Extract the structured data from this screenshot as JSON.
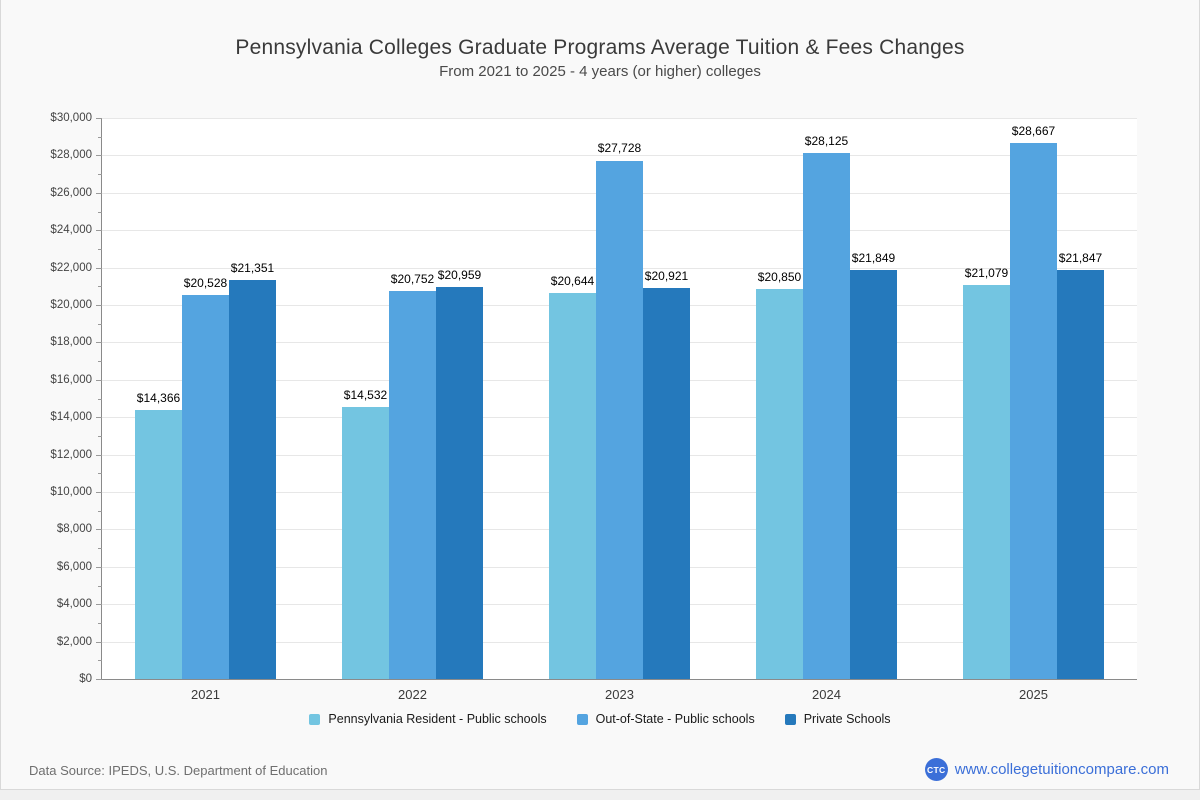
{
  "page": {
    "background": "#f0f0f0",
    "card_background": "#f9f9f9",
    "border_color": "#d9d9d9"
  },
  "header": {
    "title": "Pennsylvania Colleges Graduate Programs Average Tuition & Fees Changes",
    "subtitle": "From 2021 to 2025 - 4 years (or higher) colleges"
  },
  "chart_data": {
    "type": "bar",
    "title": "Pennsylvania Colleges Graduate Programs Average Tuition & Fees Changes",
    "subtitle": "From 2021 to 2025 - 4 years (or higher) colleges",
    "categories": [
      "2021",
      "2022",
      "2023",
      "2024",
      "2025"
    ],
    "series": [
      {
        "name": "Pennsylvania Resident - Public schools",
        "color": "#73c5e1",
        "values": [
          14366,
          14532,
          20644,
          20850,
          21079
        ]
      },
      {
        "name": "Out-of-State - Public schools",
        "color": "#54a4e0",
        "values": [
          20528,
          20752,
          27728,
          28125,
          28667
        ]
      },
      {
        "name": "Private Schools",
        "color": "#2579bc",
        "values": [
          21351,
          20959,
          20921,
          21849,
          21847
        ]
      }
    ],
    "value_labels": [
      [
        "$14,366",
        "$14,532",
        "$20,644",
        "$20,850",
        "$21,079"
      ],
      [
        "$20,528",
        "$20,752",
        "$27,728",
        "$28,125",
        "$28,667"
      ],
      [
        "$21,351",
        "$20,959",
        "$20,921",
        "$21,849",
        "$21,847"
      ]
    ],
    "xlabel": "",
    "ylabel": "",
    "ylim": [
      0,
      30000
    ],
    "y_major_step": 2000,
    "y_minor_step": 1000,
    "y_tick_prefix": "$",
    "grid": true,
    "legend_position": "bottom"
  },
  "footer": {
    "data_source": "Data Source: IPEDS, U.S. Department of Education",
    "logo_text": "CTC",
    "logo_color": "#3b6fd8",
    "website": "www.collegetuitioncompare.com",
    "link_color": "#3b6fd8"
  }
}
